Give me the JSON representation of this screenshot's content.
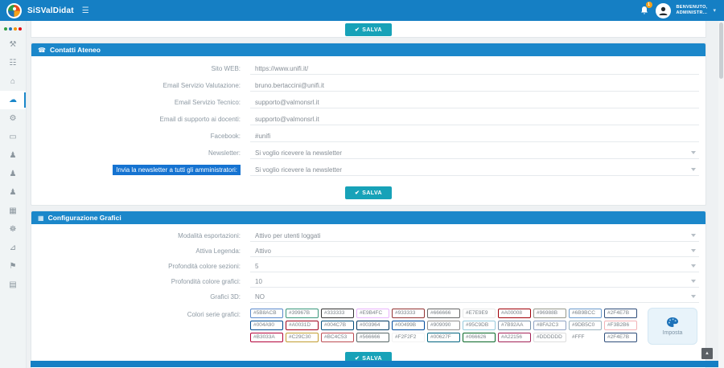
{
  "colors": {
    "header_bg": "#157fc4",
    "section_header_bg": "#1b87ca",
    "save_button_bg": "#17a2b8",
    "highlight_label_bg": "#1573d1",
    "sidebar_dots": [
      "#2e9e41",
      "#1d71b8",
      "#f39200",
      "#e30613"
    ],
    "notification_badge": "#f5a21b"
  },
  "header": {
    "app_title": "SiSValDidat",
    "menu_icon": "☰",
    "badge_count": "1",
    "welcome_line1": "BENVENUTO,",
    "welcome_line2": "ADMINISTR...",
    "user_caret": "▾"
  },
  "sidebar": {
    "items": [
      {
        "name": "tools",
        "glyph": "⚒",
        "active": false
      },
      {
        "name": "sitemap",
        "glyph": "☷",
        "active": false
      },
      {
        "name": "structures",
        "glyph": "⌂",
        "active": false
      },
      {
        "name": "cloud",
        "glyph": "☁",
        "active": true
      },
      {
        "name": "settings",
        "glyph": "⚙",
        "active": false
      },
      {
        "name": "card",
        "glyph": "▭",
        "active": false
      },
      {
        "name": "user",
        "glyph": "♟",
        "active": false
      },
      {
        "name": "user-add",
        "glyph": "♟",
        "active": false
      },
      {
        "name": "users",
        "glyph": "♟",
        "active": false
      },
      {
        "name": "departments",
        "glyph": "▦",
        "active": false
      },
      {
        "name": "gear",
        "glyph": "☸",
        "active": false
      },
      {
        "name": "stats",
        "glyph": "⊿",
        "active": false
      },
      {
        "name": "vehicles",
        "glyph": "⚑",
        "active": false
      },
      {
        "name": "library",
        "glyph": "▤",
        "active": false
      }
    ]
  },
  "buttons": {
    "salva": "SALVA",
    "salva_icon": "✔"
  },
  "contatti": {
    "title": "Contatti Ateneo",
    "icon": "☎",
    "fields": [
      {
        "label": "Sito WEB:",
        "value": "https://www.unifi.it/",
        "type": "text",
        "highlighted": false
      },
      {
        "label": "Email Servizio Valutazione:",
        "value": "bruno.bertaccini@unifi.it",
        "type": "text",
        "highlighted": false
      },
      {
        "label": "Email Servizio Tecnico:",
        "value": "supporto@valmonsrl.it",
        "type": "text",
        "highlighted": false
      },
      {
        "label": "Email di supporto ai docenti:",
        "value": "supporto@valmonsrl.it",
        "type": "text",
        "highlighted": false
      },
      {
        "label": "Facebook:",
        "value": "#unifi",
        "type": "text",
        "highlighted": false
      },
      {
        "label": "Newsletter:",
        "value": "Si voglio ricevere la newsletter",
        "type": "select",
        "highlighted": false
      },
      {
        "label": "Invia la newsletter a tutti gli amministratori:",
        "value": "Si voglio ricevere la newsletter",
        "type": "select",
        "highlighted": true
      }
    ]
  },
  "grafici": {
    "title": "Configurazione Grafici",
    "icon": "▦",
    "fields": [
      {
        "label": "Modalità esportazioni:",
        "value": "Attivo per utenti loggati",
        "type": "select",
        "highlighted": false
      },
      {
        "label": "Attiva Legenda:",
        "value": "Attivo",
        "type": "select",
        "highlighted": false
      },
      {
        "label": "Profondità colore sezioni:",
        "value": "5",
        "type": "select",
        "highlighted": false
      },
      {
        "label": "Profondità colore grafici:",
        "value": "10",
        "type": "select",
        "highlighted": false
      },
      {
        "label": "Grafici 3D:",
        "value": "NO",
        "type": "select",
        "highlighted": false
      }
    ],
    "colors_label": "Colori serie grafici:",
    "color_rows": [
      [
        "#5B8ACB",
        "#39967B",
        "#333333",
        "#E9B4FC",
        "#933333",
        "#666666",
        "#E7E9E9",
        "#A00008",
        "#96988B",
        "#6B9BCC",
        "#2F4E7B"
      ],
      [
        "#004A90",
        "#A0031D",
        "#004C7B",
        "#003964",
        "#00499B",
        "#909090",
        "#95C9DB",
        "#7B92AA",
        "#8FA2C3",
        "#9DB5C0",
        "#F3B2B6"
      ],
      [
        "#B3033A",
        "#C29C30",
        "#BC4C53",
        "#566666",
        "#F2F2F2",
        "#00627F",
        "#066626",
        "#A22156",
        "#DDDDDD",
        "#FFF",
        "#2F4E7B"
      ]
    ],
    "imposta_label": "Imposta"
  },
  "scroll_top_icon": "▲"
}
